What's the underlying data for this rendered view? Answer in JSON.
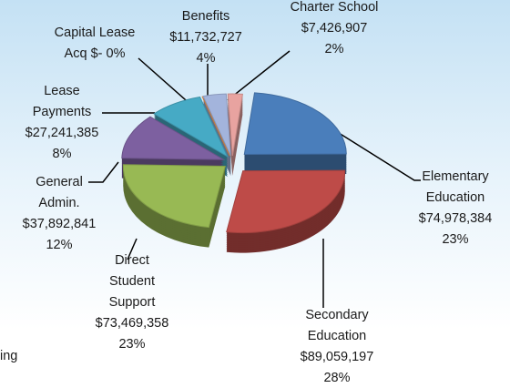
{
  "chart_data": {
    "type": "pie",
    "categories": [
      "Elementary Education",
      "Secondary Education",
      "Direct Student Support",
      "General Admin.",
      "Lease Payments",
      "Capital Lease Acq",
      "Benefits",
      "Charter School"
    ],
    "values": [
      74978384,
      89059197,
      73469358,
      37892841,
      27241385,
      0,
      11732727,
      7426907
    ],
    "value_labels": [
      "$74,978,384",
      "$89,059,197",
      "$73,469,358",
      "$37,892,841",
      "$27,241,385",
      "$-",
      "$11,732,727",
      "$7,426,907"
    ],
    "percent_labels": [
      "23%",
      "28%",
      "23%",
      "12%",
      "8%",
      "0%",
      "4%",
      "2%"
    ],
    "colors": [
      "#4a7ebb",
      "#be4b48",
      "#98b954",
      "#7d60a0",
      "#46aac5",
      "#f3923d",
      "#a3b4dc",
      "#e8a3a0"
    ]
  },
  "cut_text": "ing"
}
